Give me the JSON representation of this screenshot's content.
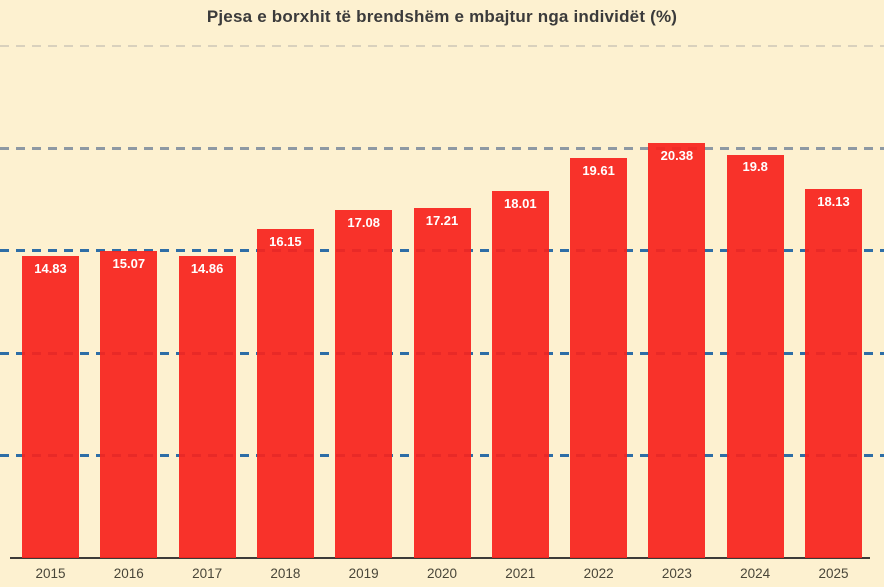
{
  "chart_data": {
    "type": "bar",
    "title": "Pjesa e borxhit të brendshëm e mbajtur nga individët (%)",
    "categories": [
      "2015",
      "2016",
      "2017",
      "2018",
      "2019",
      "2020",
      "2021",
      "2022",
      "2023",
      "2024",
      "2025"
    ],
    "values": [
      14.83,
      15.07,
      14.86,
      16.15,
      17.08,
      17.21,
      18.01,
      19.61,
      20.38,
      19.8,
      18.13
    ],
    "value_labels": [
      "14.83",
      "15.07",
      "14.86",
      "16.15",
      "17.08",
      "17.21",
      "18.01",
      "19.61",
      "20.38",
      "19.8",
      "18.13"
    ],
    "xlabel": "",
    "ylabel": "",
    "ylim": [
      0,
      25
    ],
    "grid": "horizontal-dashed",
    "y_axis_tick_labels_visible": false,
    "legend": "none",
    "gridlines": [
      {
        "value": 5,
        "color": "#2e6ea6",
        "style": "dashed"
      },
      {
        "value": 10,
        "color": "#2e6ea6",
        "style": "dashed"
      },
      {
        "value": 15,
        "color": "#2e6ea6",
        "style": "dashed"
      },
      {
        "value": 20,
        "color": "#8e99a3",
        "style": "dashed"
      },
      {
        "value": 25,
        "color": "#d9d1bd",
        "style": "dashed"
      }
    ],
    "colors": {
      "bar": "#f8231d",
      "background": "#fdf1d0",
      "value_label": "#ffffff",
      "axis_line": "#3d3b38",
      "tick_label": "#494639",
      "title": "#3b3b3b"
    }
  }
}
